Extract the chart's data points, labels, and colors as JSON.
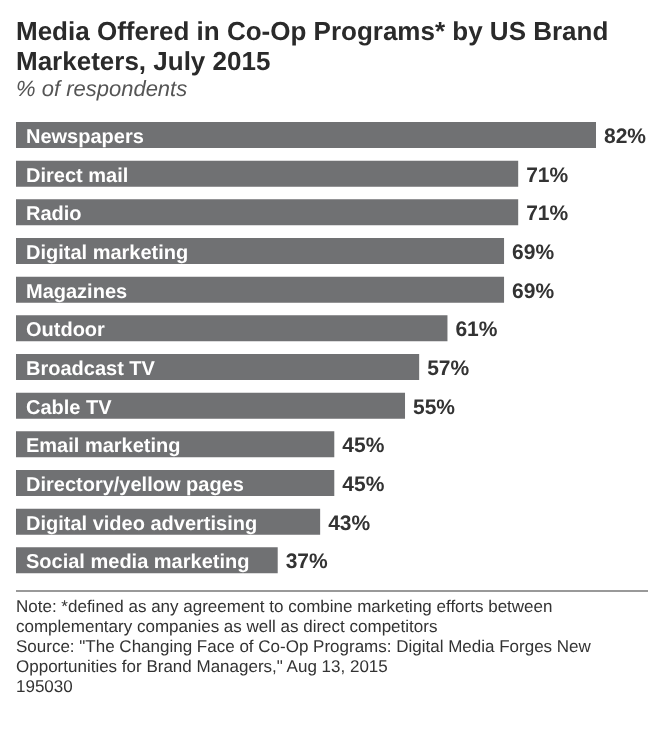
{
  "chart_data": {
    "type": "bar",
    "orientation": "horizontal",
    "title": "Media Offered in Co-Op Programs* by US Brand Marketers, July 2015",
    "subtitle": "% of respondents",
    "categories": [
      "Newspapers",
      "Direct mail",
      "Radio",
      "Digital marketing",
      "Magazines",
      "Outdoor",
      "Broadcast TV",
      "Cable TV",
      "Email marketing",
      "Directory/yellow pages",
      "Digital video advertising",
      "Social media marketing"
    ],
    "values": [
      82,
      71,
      71,
      69,
      69,
      61,
      57,
      55,
      45,
      45,
      43,
      37
    ],
    "value_labels": [
      "82%",
      "71%",
      "71%",
      "69%",
      "69%",
      "61%",
      "57%",
      "55%",
      "45%",
      "45%",
      "43%",
      "37%"
    ],
    "color": "#707173",
    "annotations": [
      "Note: *defined as any agreement to combine marketing efforts between complementary companies as well as direct competitors",
      "Source: \"The Changing Face of Co-Op Programs: Digital Media Forges New Opportunities for Brand Managers,\" Aug 13, 2015",
      "195030"
    ],
    "legend": false,
    "grid": false
  }
}
